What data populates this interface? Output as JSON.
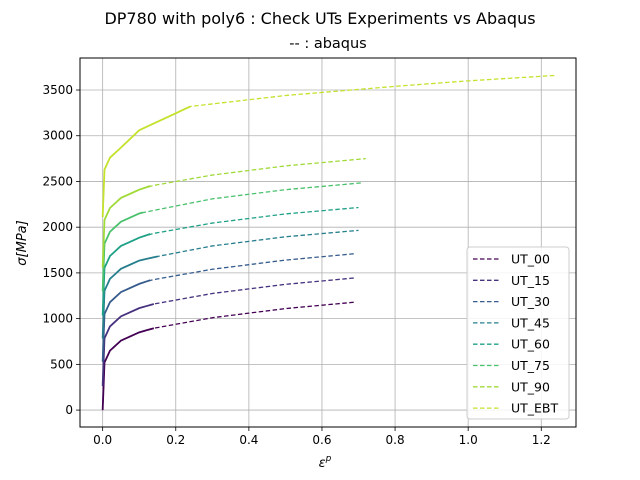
{
  "chart_data": {
    "type": "line",
    "title": "DP780 with poly6 : Check UTs Experiments vs Abaqus",
    "subtitle": "-- : abaqus",
    "xlabel": "ε",
    "xlabel_sup": "p",
    "ylabel": "σ[MPa]",
    "xlim": [
      -0.062,
      1.295
    ],
    "ylim": [
      -185,
      3850
    ],
    "x_ticks": [
      0.0,
      0.2,
      0.4,
      0.6,
      0.8,
      1.0,
      1.2
    ],
    "x_tick_labels": [
      "0.0",
      "0.2",
      "0.4",
      "0.6",
      "0.8",
      "1.0",
      "1.2"
    ],
    "y_ticks": [
      0,
      500,
      1000,
      1500,
      2000,
      2500,
      3000,
      3500
    ],
    "y_tick_labels": [
      "0",
      "500",
      "1000",
      "1500",
      "2000",
      "2500",
      "3000",
      "3500"
    ],
    "grid": true,
    "legend_position": "lower-right",
    "series": [
      {
        "name": "UT_00",
        "color": "#440154",
        "offset": 0,
        "exp_x_max": 0.14,
        "abaqus_x_max": 0.69,
        "x": [
          0,
          0.005,
          0.02,
          0.05,
          0.1,
          0.14,
          0.3,
          0.5,
          0.69
        ],
        "y": [
          0,
          520,
          650,
          760,
          850,
          895,
          1010,
          1110,
          1180
        ]
      },
      {
        "name": "UT_15",
        "color": "#46327e",
        "offset": 265,
        "exp_x_max": 0.14,
        "abaqus_x_max": 0.69,
        "x": [
          0,
          0.005,
          0.02,
          0.05,
          0.1,
          0.14,
          0.3,
          0.5,
          0.69
        ],
        "y": [
          265,
          785,
          915,
          1025,
          1115,
          1160,
          1275,
          1375,
          1445
        ]
      },
      {
        "name": "UT_30",
        "color": "#365c8d",
        "offset": 530,
        "exp_x_max": 0.13,
        "abaqus_x_max": 0.69,
        "x": [
          0,
          0.005,
          0.02,
          0.05,
          0.1,
          0.13,
          0.3,
          0.5,
          0.69
        ],
        "y": [
          530,
          1050,
          1180,
          1290,
          1380,
          1420,
          1540,
          1640,
          1710
        ]
      },
      {
        "name": "UT_45",
        "color": "#277f8e",
        "offset": 785,
        "exp_x_max": 0.15,
        "abaqus_x_max": 0.7,
        "x": [
          0,
          0.005,
          0.02,
          0.05,
          0.1,
          0.15,
          0.3,
          0.5,
          0.7
        ],
        "y": [
          785,
          1305,
          1435,
          1545,
          1635,
          1680,
          1795,
          1895,
          1965
        ]
      },
      {
        "name": "UT_60",
        "color": "#1fa187",
        "offset": 1035,
        "exp_x_max": 0.13,
        "abaqus_x_max": 0.7,
        "x": [
          0,
          0.005,
          0.02,
          0.05,
          0.1,
          0.13,
          0.3,
          0.5,
          0.7
        ],
        "y": [
          1035,
          1555,
          1685,
          1795,
          1885,
          1925,
          2045,
          2145,
          2215
        ]
      },
      {
        "name": "UT_75",
        "color": "#4ac16d",
        "offset": 1300,
        "exp_x_max": 0.11,
        "abaqus_x_max": 0.71,
        "x": [
          0,
          0.005,
          0.02,
          0.05,
          0.1,
          0.11,
          0.3,
          0.5,
          0.71
        ],
        "y": [
          1300,
          1820,
          1950,
          2060,
          2150,
          2160,
          2310,
          2410,
          2485
        ]
      },
      {
        "name": "UT_90",
        "color": "#a0da39",
        "offset": 1560,
        "exp_x_max": 0.13,
        "abaqus_x_max": 0.72,
        "x": [
          0,
          0.005,
          0.02,
          0.05,
          0.1,
          0.13,
          0.3,
          0.5,
          0.72
        ],
        "y": [
          1560,
          2080,
          2210,
          2320,
          2410,
          2450,
          2570,
          2670,
          2750
        ]
      },
      {
        "name": "UT_EBT",
        "color": "#c4e22c",
        "offset": 2110,
        "exp_x_max": 0.24,
        "abaqus_x_max": 1.24,
        "x": [
          0,
          0.005,
          0.02,
          0.05,
          0.1,
          0.24,
          0.5,
          0.8,
          1.0,
          1.24
        ],
        "y": [
          2110,
          2630,
          2760,
          2870,
          3060,
          3320,
          3440,
          3540,
          3600,
          3660
        ]
      }
    ]
  }
}
